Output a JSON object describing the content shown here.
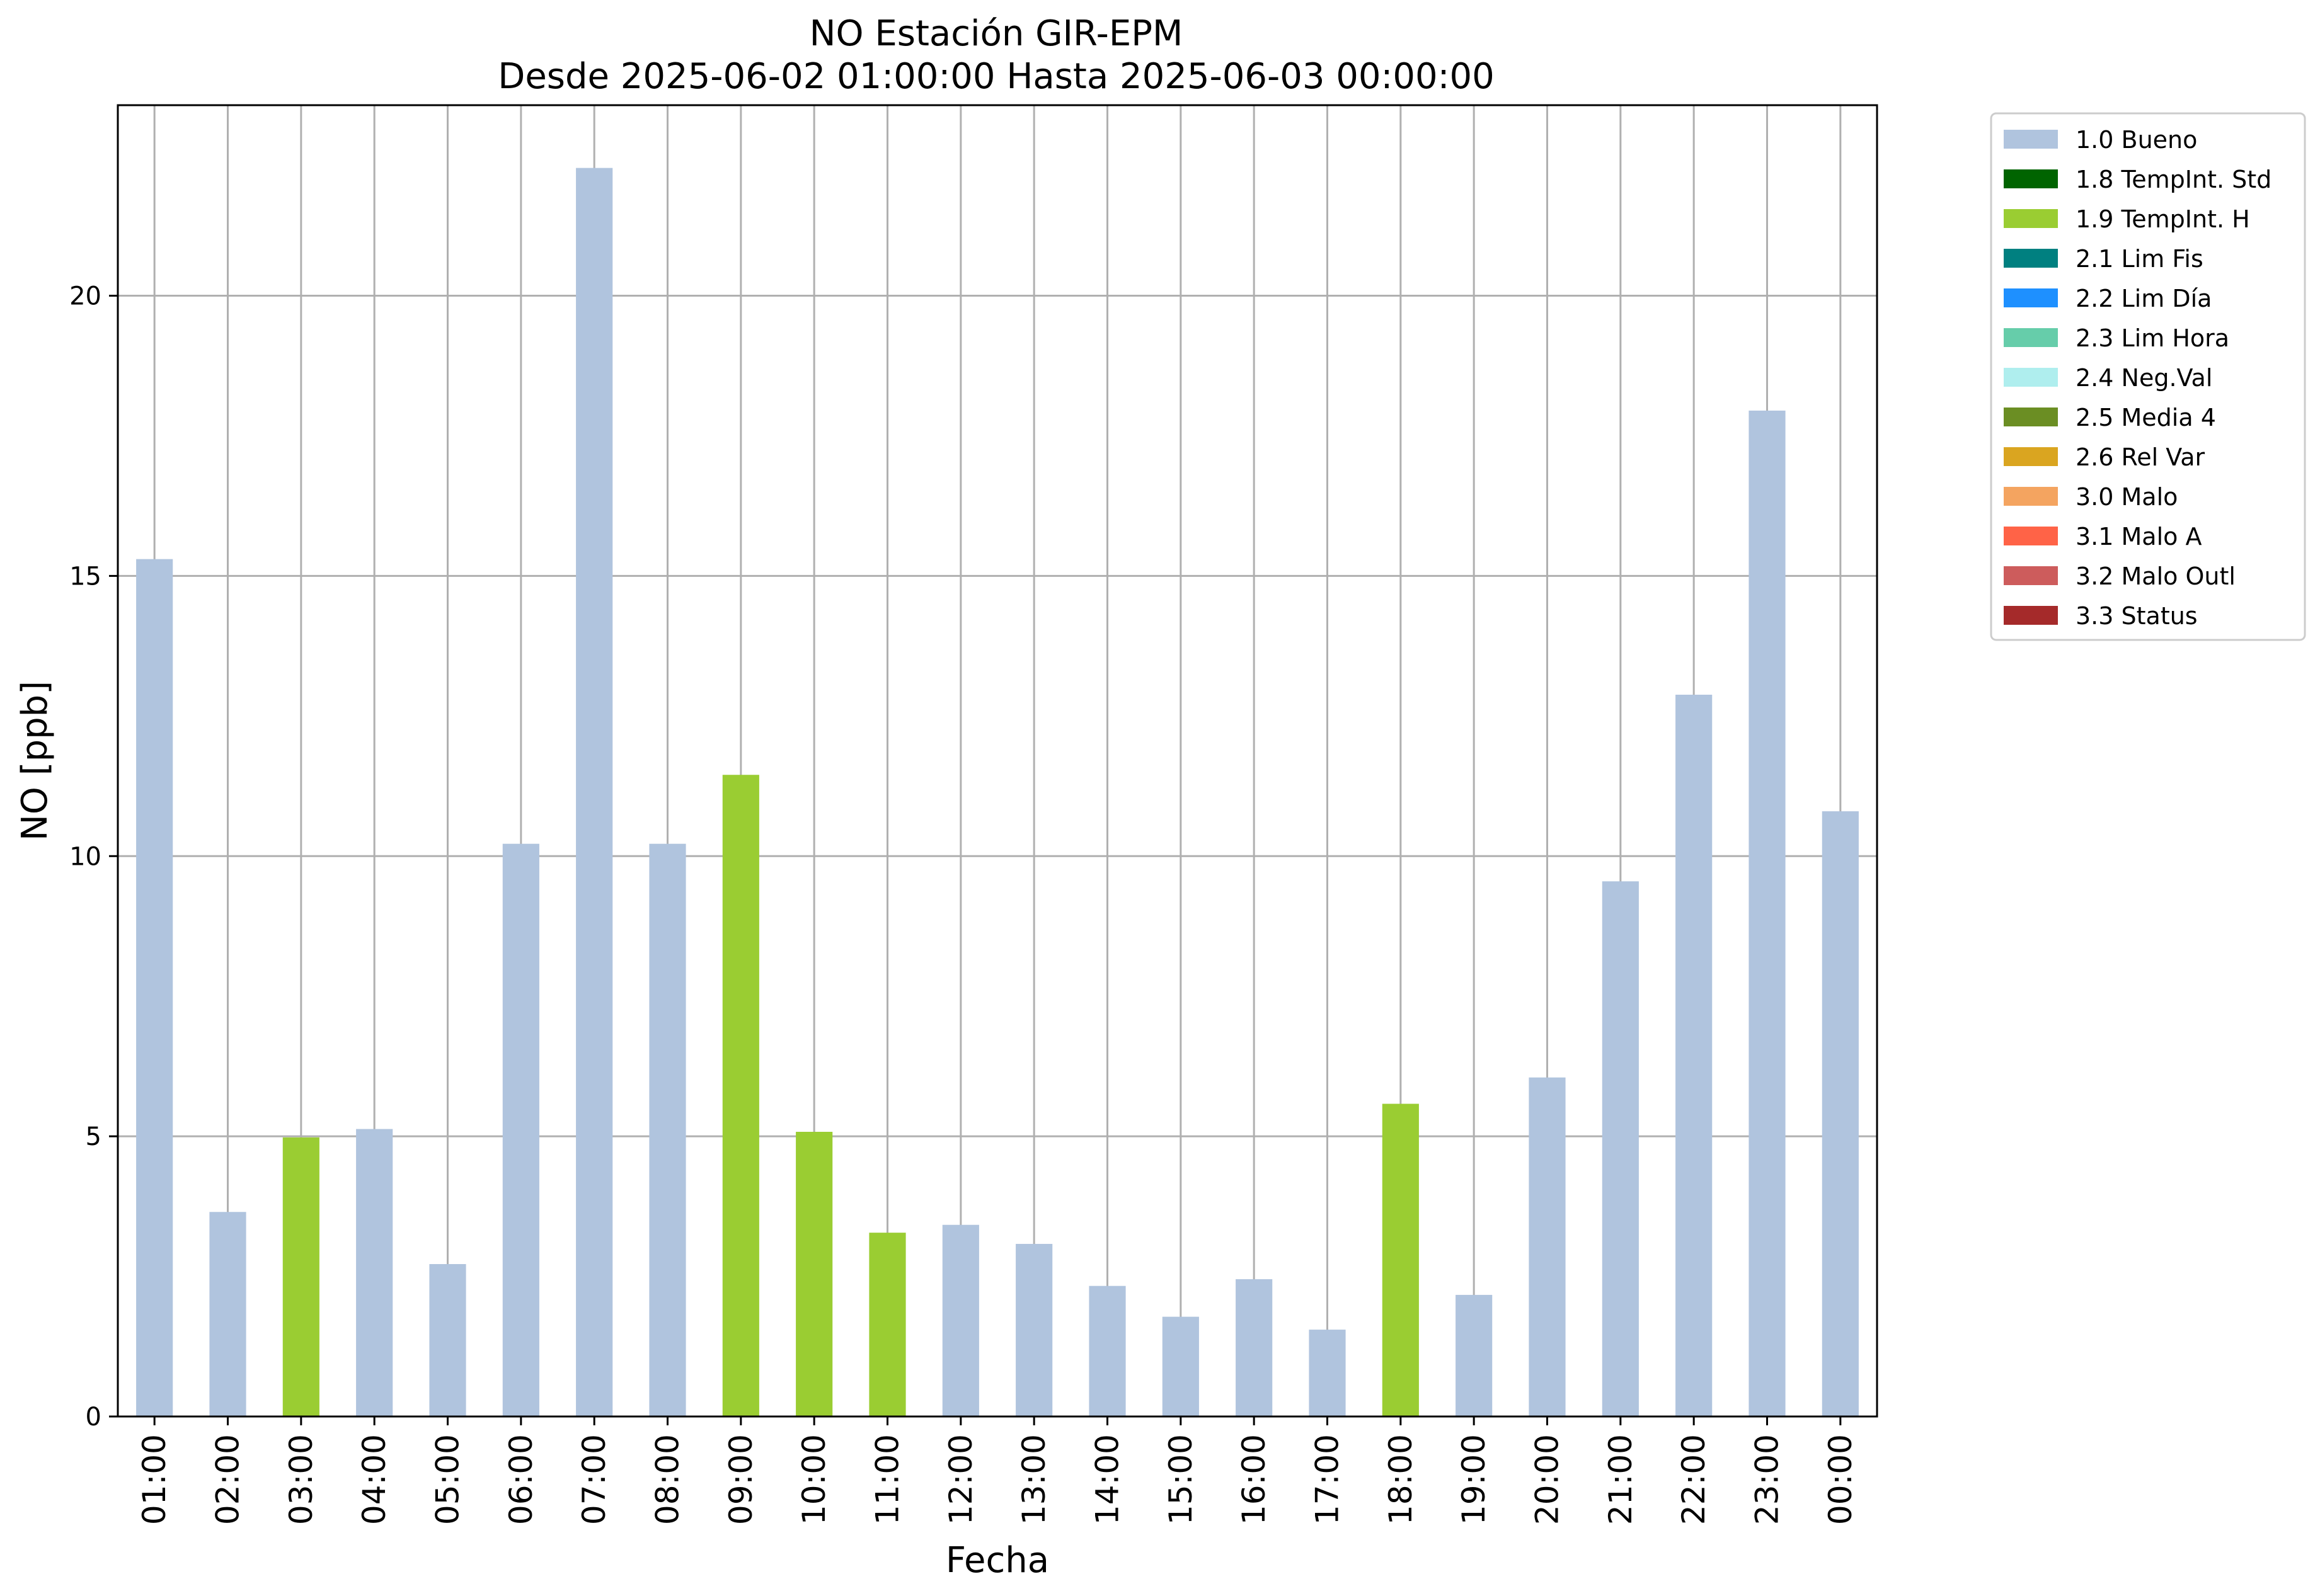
{
  "chart_data": {
    "type": "bar",
    "title": "NO Estación GIR-EPM",
    "subtitle": "Desde 2025-06-02 01:00:00 Hasta 2025-06-03 00:00:00",
    "xlabel": "Fecha",
    "ylabel": "NO [ppb]",
    "ylim": [
      0,
      23.4
    ],
    "yticks": [
      0,
      5,
      10,
      15,
      20
    ],
    "grid": true,
    "legend_position": "outside-top-right",
    "categories": [
      "01:00",
      "02:00",
      "03:00",
      "04:00",
      "05:00",
      "06:00",
      "07:00",
      "08:00",
      "09:00",
      "10:00",
      "11:00",
      "12:00",
      "13:00",
      "14:00",
      "15:00",
      "16:00",
      "17:00",
      "18:00",
      "19:00",
      "20:00",
      "21:00",
      "22:00",
      "23:00",
      "00:00"
    ],
    "values": [
      15.3,
      3.65,
      4.98,
      5.13,
      2.72,
      10.22,
      22.28,
      10.22,
      11.45,
      5.08,
      3.28,
      3.42,
      3.08,
      2.33,
      1.78,
      2.45,
      1.55,
      5.58,
      2.17,
      6.05,
      9.55,
      12.88,
      17.95,
      10.8
    ],
    "flags": [
      "1.0",
      "1.0",
      "1.9",
      "1.0",
      "1.0",
      "1.0",
      "1.0",
      "1.0",
      "1.9",
      "1.9",
      "1.9",
      "1.0",
      "1.0",
      "1.0",
      "1.0",
      "1.0",
      "1.0",
      "1.9",
      "1.0",
      "1.0",
      "1.0",
      "1.0",
      "1.0",
      "1.0"
    ],
    "legend": [
      {
        "code": "1.0",
        "label": "1.0 Bueno",
        "color": "#b0c4de"
      },
      {
        "code": "1.8",
        "label": "1.8 TempInt. Std",
        "color": "#006400"
      },
      {
        "code": "1.9",
        "label": "1.9 TempInt. H",
        "color": "#9acd32"
      },
      {
        "code": "2.1",
        "label": "2.1 Lim Fis",
        "color": "#008080"
      },
      {
        "code": "2.2",
        "label": "2.2 Lim Día",
        "color": "#1e90ff"
      },
      {
        "code": "2.3",
        "label": "2.3 Lim Hora",
        "color": "#66cdaa"
      },
      {
        "code": "2.4",
        "label": "2.4 Neg.Val",
        "color": "#afeeee"
      },
      {
        "code": "2.5",
        "label": "2.5 Media 4",
        "color": "#6b8e23"
      },
      {
        "code": "2.6",
        "label": "2.6 Rel Var",
        "color": "#daa520"
      },
      {
        "code": "3.0",
        "label": "3.0 Malo",
        "color": "#f4a460"
      },
      {
        "code": "3.1",
        "label": "3.1 Malo A",
        "color": "#ff6347"
      },
      {
        "code": "3.2",
        "label": "3.2 Malo Outl",
        "color": "#cd5c5c"
      },
      {
        "code": "3.3",
        "label": "3.3 Status",
        "color": "#a52a2a"
      }
    ]
  }
}
